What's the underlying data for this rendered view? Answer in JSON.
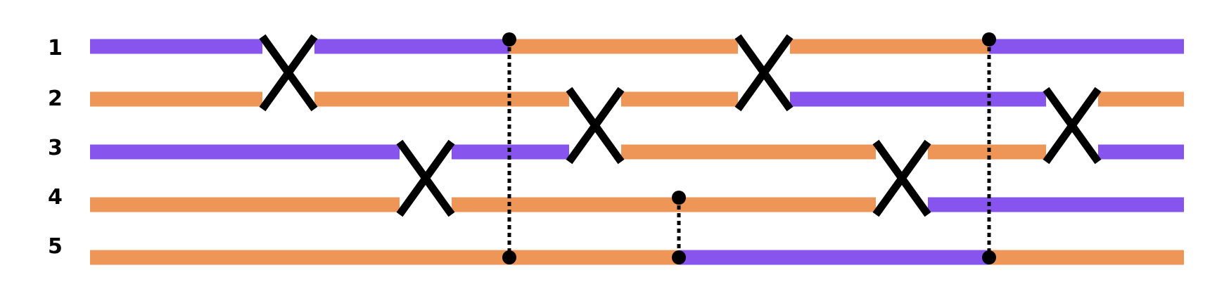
{
  "diagram": {
    "title": "",
    "colors": {
      "purple": "#8755EE",
      "orange": "#EE9658",
      "connector": "#000000",
      "swap": "#000000",
      "label": "#000000"
    },
    "wires": [
      {
        "label": "1",
        "segments": [
          "purple",
          "purple",
          "orange",
          "orange",
          "purple",
          "orange"
        ]
      },
      {
        "label": "2",
        "segments": [
          "orange",
          "orange",
          "orange",
          "purple",
          "orange",
          "purple"
        ]
      },
      {
        "label": "3",
        "segments": [
          "purple",
          "purple",
          "orange",
          "orange",
          "purple",
          "orange"
        ]
      },
      {
        "label": "4",
        "segments": [
          "orange",
          "orange",
          "orange",
          "purple",
          "orange",
          "orange"
        ]
      },
      {
        "label": "5",
        "segments": [
          "orange",
          "orange",
          "purple",
          "orange",
          "purple",
          "purple"
        ]
      }
    ],
    "swaps": [
      {
        "wires": [
          1,
          2
        ],
        "step": 1
      },
      {
        "wires": [
          3,
          4
        ],
        "step": 2
      },
      {
        "wires": [
          2,
          3
        ],
        "step": 3
      },
      {
        "wires": [
          1,
          2
        ],
        "step": 4
      },
      {
        "wires": [
          3,
          4
        ],
        "step": 5
      },
      {
        "wires": [
          2,
          3
        ],
        "step": 6
      }
    ],
    "connectors": [
      {
        "wires": [
          1,
          5
        ],
        "step": "a"
      },
      {
        "wires": [
          4,
          5
        ],
        "step": "b"
      },
      {
        "wires": [
          1,
          5
        ],
        "step": "c"
      }
    ]
  }
}
